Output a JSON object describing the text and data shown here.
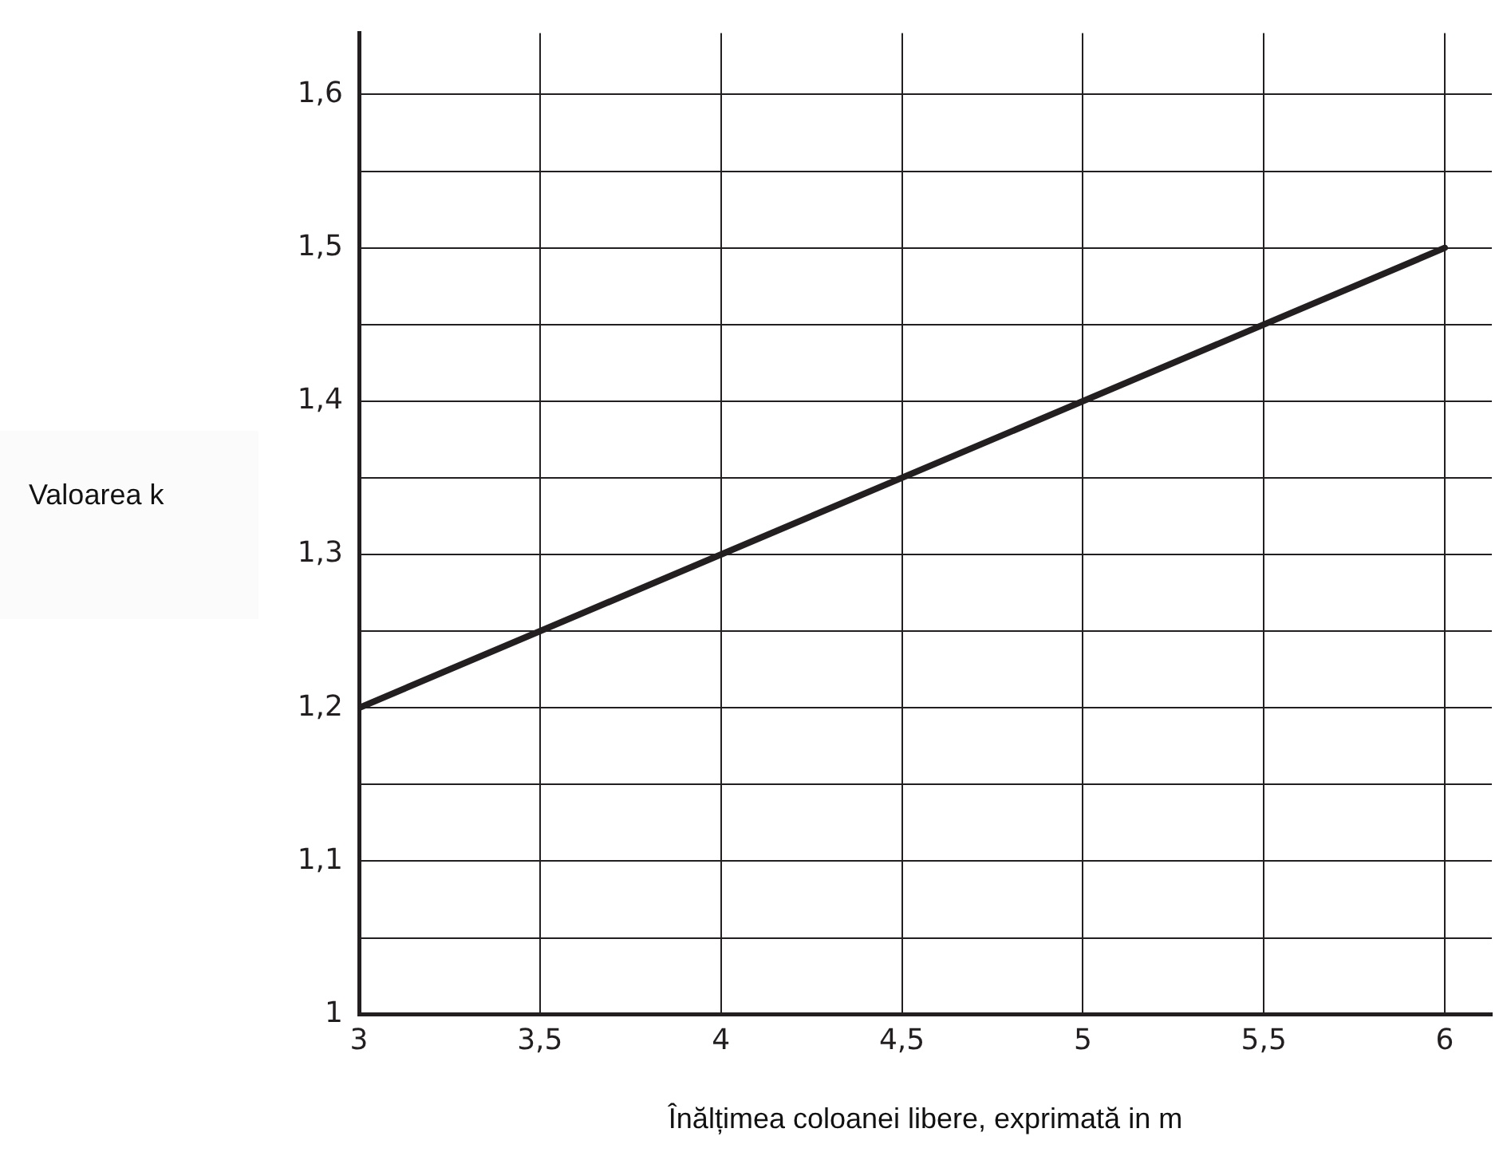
{
  "chart_data": {
    "type": "line",
    "xlabel": "Înălțimea coloanei libere, exprimată in m",
    "ylabel": "Valoarea k",
    "x": [
      3,
      6
    ],
    "series": [
      {
        "color": "#231f20",
        "values": [
          1.2,
          1.5
        ]
      }
    ],
    "xlim": [
      3,
      6.13
    ],
    "ylim": [
      1,
      1.64
    ],
    "xticks": [
      3,
      {
        "value": 3.5,
        "label": "3,5"
      },
      4,
      {
        "value": 4.5,
        "label": "4,5"
      },
      5,
      {
        "value": 5.5,
        "label": "5,5"
      },
      6
    ],
    "yticks": [
      1,
      {
        "value": 1.05,
        "label": null
      },
      {
        "value": 1.1,
        "label": "1,1"
      },
      {
        "value": 1.15,
        "label": null
      },
      {
        "value": 1.2,
        "label": "1,2"
      },
      {
        "value": 1.25,
        "label": null
      },
      {
        "value": 1.3,
        "label": "1,3"
      },
      {
        "value": 1.35,
        "label": null
      },
      {
        "value": 1.4,
        "label": "1,4"
      },
      {
        "value": 1.45,
        "label": null
      },
      {
        "value": 1.5,
        "label": "1,5"
      },
      {
        "value": 1.55,
        "label": null
      },
      {
        "value": 1.6,
        "label": "1,6"
      }
    ],
    "grid": true,
    "legend": false,
    "marker": "none",
    "line_style": "solid"
  }
}
